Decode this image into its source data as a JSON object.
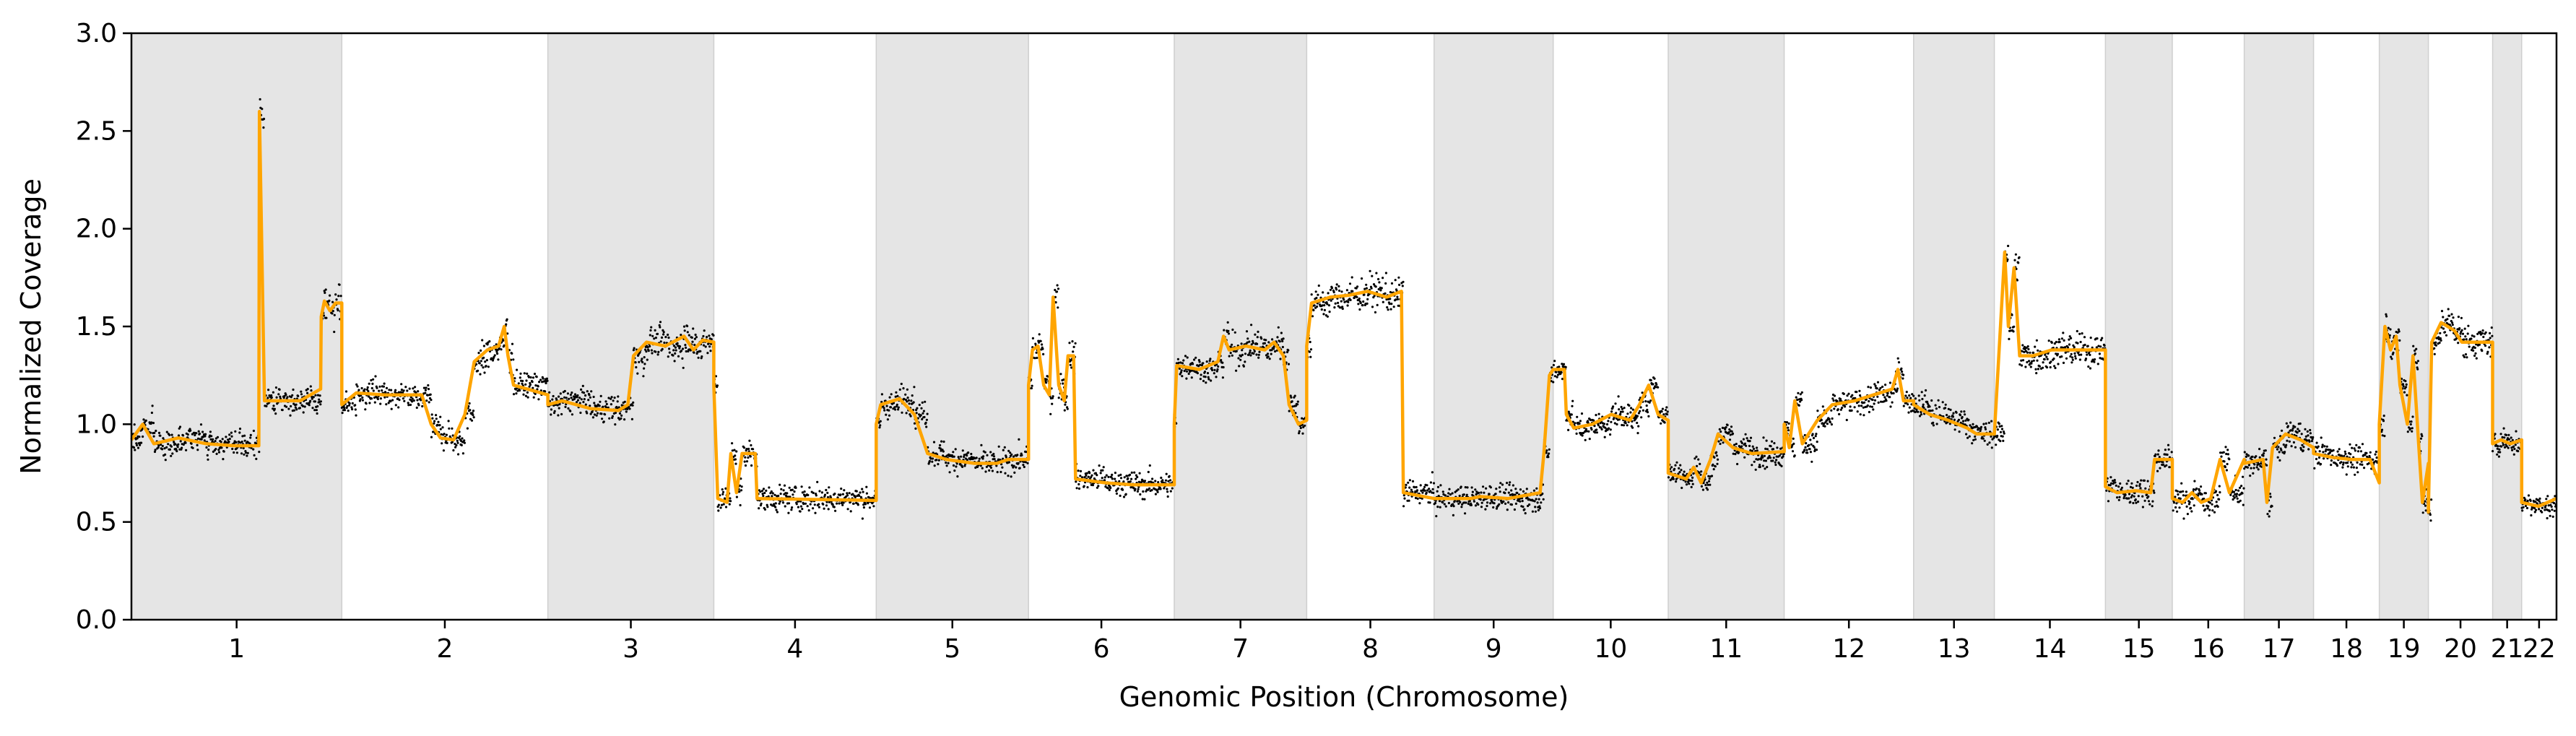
{
  "chart_data": {
    "type": "scatter",
    "xlabel": "Genomic Position (Chromosome)",
    "ylabel": "Normalized Coverage",
    "ylim": [
      0.0,
      3.0
    ],
    "yticks": [
      "0.0",
      "0.5",
      "1.0",
      "1.5",
      "2.0",
      "2.5",
      "3.0"
    ],
    "grid": false,
    "legend": "none",
    "colors": {
      "points": "#000000",
      "segments": "#FFA500",
      "shade": "#e5e5e5",
      "shade_edge": "#cfcfcf"
    },
    "chromosomes": [
      {
        "label": "1",
        "start": 0,
        "end": 1123,
        "shaded": true
      },
      {
        "label": "2",
        "start": 1123,
        "end": 2223,
        "shaded": false
      },
      {
        "label": "3",
        "start": 2223,
        "end": 3109,
        "shaded": true
      },
      {
        "label": "4",
        "start": 3109,
        "end": 3976,
        "shaded": false
      },
      {
        "label": "5",
        "start": 3976,
        "end": 4789,
        "shaded": true
      },
      {
        "label": "6",
        "start": 4789,
        "end": 5567,
        "shaded": false
      },
      {
        "label": "7",
        "start": 5567,
        "end": 6274,
        "shaded": true
      },
      {
        "label": "8",
        "start": 6274,
        "end": 6954,
        "shaded": false
      },
      {
        "label": "9",
        "start": 6954,
        "end": 7590,
        "shaded": true
      },
      {
        "label": "10",
        "start": 7590,
        "end": 8204,
        "shaded": false
      },
      {
        "label": "11",
        "start": 8204,
        "end": 8823,
        "shaded": true
      },
      {
        "label": "12",
        "start": 8823,
        "end": 9514,
        "shaded": false
      },
      {
        "label": "13",
        "start": 9514,
        "end": 9945,
        "shaded": true
      },
      {
        "label": "14",
        "start": 9945,
        "end": 10538,
        "shaded": false
      },
      {
        "label": "15",
        "start": 10538,
        "end": 10895,
        "shaded": true
      },
      {
        "label": "16",
        "start": 10895,
        "end": 11279,
        "shaded": false
      },
      {
        "label": "17",
        "start": 11279,
        "end": 11649,
        "shaded": true
      },
      {
        "label": "18",
        "start": 11649,
        "end": 12000,
        "shaded": false
      },
      {
        "label": "19",
        "start": 12000,
        "end": 12262,
        "shaded": true
      },
      {
        "label": "20",
        "start": 12262,
        "end": 12605,
        "shaded": false
      },
      {
        "label": "21",
        "start": 12605,
        "end": 12760,
        "shaded": true
      },
      {
        "label": "22",
        "start": 12760,
        "end": 12946,
        "shaded": false
      }
    ],
    "segments": [
      [
        0,
        0.92
      ],
      [
        60,
        1.0
      ],
      [
        120,
        0.9
      ],
      [
        250,
        0.93
      ],
      [
        400,
        0.9
      ],
      [
        550,
        0.89
      ],
      [
        680,
        0.89
      ],
      [
        683,
        2.6
      ],
      [
        710,
        1.12
      ],
      [
        900,
        1.12
      ],
      [
        1010,
        1.18
      ],
      [
        1013,
        1.55
      ],
      [
        1030,
        1.63
      ],
      [
        1060,
        1.58
      ],
      [
        1090,
        1.62
      ],
      [
        1123,
        1.62
      ],
      [
        1123,
        1.1
      ],
      [
        1200,
        1.16
      ],
      [
        1350,
        1.15
      ],
      [
        1550,
        1.15
      ],
      [
        1600,
        1.0
      ],
      [
        1650,
        0.93
      ],
      [
        1720,
        0.92
      ],
      [
        1780,
        1.05
      ],
      [
        1830,
        1.32
      ],
      [
        1900,
        1.38
      ],
      [
        1960,
        1.4
      ],
      [
        1990,
        1.5
      ],
      [
        2010,
        1.35
      ],
      [
        2040,
        1.2
      ],
      [
        2223,
        1.15
      ],
      [
        2223,
        1.1
      ],
      [
        2300,
        1.12
      ],
      [
        2450,
        1.08
      ],
      [
        2600,
        1.07
      ],
      [
        2650,
        1.1
      ],
      [
        2680,
        1.35
      ],
      [
        2750,
        1.42
      ],
      [
        2850,
        1.4
      ],
      [
        2950,
        1.45
      ],
      [
        3000,
        1.38
      ],
      [
        3050,
        1.43
      ],
      [
        3109,
        1.42
      ],
      [
        3109,
        1.2
      ],
      [
        3130,
        0.62
      ],
      [
        3180,
        0.6
      ],
      [
        3200,
        0.85
      ],
      [
        3230,
        0.65
      ],
      [
        3260,
        0.85
      ],
      [
        3330,
        0.85
      ],
      [
        3340,
        0.62
      ],
      [
        3976,
        0.61
      ],
      [
        3976,
        1.0
      ],
      [
        4000,
        1.1
      ],
      [
        4100,
        1.13
      ],
      [
        4180,
        1.05
      ],
      [
        4250,
        0.85
      ],
      [
        4350,
        0.82
      ],
      [
        4500,
        0.8
      ],
      [
        4620,
        0.8
      ],
      [
        4680,
        0.82
      ],
      [
        4720,
        0.82
      ],
      [
        4789,
        0.82
      ],
      [
        4789,
        1.2
      ],
      [
        4810,
        1.38
      ],
      [
        4840,
        1.4
      ],
      [
        4870,
        1.2
      ],
      [
        4900,
        1.15
      ],
      [
        4920,
        1.65
      ],
      [
        4950,
        1.2
      ],
      [
        4980,
        1.12
      ],
      [
        5000,
        1.35
      ],
      [
        5030,
        1.35
      ],
      [
        5040,
        0.72
      ],
      [
        5200,
        0.7
      ],
      [
        5350,
        0.69
      ],
      [
        5567,
        0.69
      ],
      [
        5567,
        1.0
      ],
      [
        5580,
        1.3
      ],
      [
        5700,
        1.28
      ],
      [
        5800,
        1.32
      ],
      [
        5830,
        1.45
      ],
      [
        5860,
        1.38
      ],
      [
        5950,
        1.4
      ],
      [
        6050,
        1.38
      ],
      [
        6100,
        1.42
      ],
      [
        6150,
        1.35
      ],
      [
        6180,
        1.1
      ],
      [
        6230,
        1.0
      ],
      [
        6274,
        1.02
      ],
      [
        6274,
        1.4
      ],
      [
        6300,
        1.62
      ],
      [
        6400,
        1.65
      ],
      [
        6500,
        1.66
      ],
      [
        6600,
        1.68
      ],
      [
        6700,
        1.65
      ],
      [
        6780,
        1.68
      ],
      [
        6790,
        0.65
      ],
      [
        6954,
        0.62
      ],
      [
        6954,
        0.62
      ],
      [
        7150,
        0.62
      ],
      [
        7200,
        0.63
      ],
      [
        7350,
        0.62
      ],
      [
        7520,
        0.65
      ],
      [
        7540,
        0.85
      ],
      [
        7570,
        1.25
      ],
      [
        7590,
        1.28
      ],
      [
        7590,
        1.28
      ],
      [
        7650,
        1.28
      ],
      [
        7660,
        1.05
      ],
      [
        7700,
        0.98
      ],
      [
        7800,
        1.0
      ],
      [
        7900,
        1.05
      ],
      [
        8000,
        1.02
      ],
      [
        8050,
        1.1
      ],
      [
        8100,
        1.2
      ],
      [
        8150,
        1.05
      ],
      [
        8204,
        1.02
      ],
      [
        8204,
        0.75
      ],
      [
        8300,
        0.72
      ],
      [
        8340,
        0.78
      ],
      [
        8380,
        0.7
      ],
      [
        8430,
        0.82
      ],
      [
        8470,
        0.95
      ],
      [
        8550,
        0.88
      ],
      [
        8650,
        0.85
      ],
      [
        8823,
        0.86
      ],
      [
        8823,
        1.0
      ],
      [
        8850,
        0.88
      ],
      [
        8880,
        1.12
      ],
      [
        8920,
        0.9
      ],
      [
        9000,
        1.02
      ],
      [
        9080,
        1.1
      ],
      [
        9200,
        1.12
      ],
      [
        9300,
        1.15
      ],
      [
        9400,
        1.18
      ],
      [
        9430,
        1.28
      ],
      [
        9460,
        1.12
      ],
      [
        9514,
        1.12
      ],
      [
        9514,
        1.1
      ],
      [
        9600,
        1.05
      ],
      [
        9700,
        1.02
      ],
      [
        9800,
        0.98
      ],
      [
        9850,
        0.95
      ],
      [
        9945,
        0.95
      ],
      [
        9945,
        0.95
      ],
      [
        10000,
        1.88
      ],
      [
        10020,
        1.5
      ],
      [
        10050,
        1.8
      ],
      [
        10080,
        1.35
      ],
      [
        10150,
        1.35
      ],
      [
        10250,
        1.38
      ],
      [
        10400,
        1.38
      ],
      [
        10538,
        1.38
      ],
      [
        10538,
        0.68
      ],
      [
        10600,
        0.65
      ],
      [
        10700,
        0.66
      ],
      [
        10780,
        0.65
      ],
      [
        10800,
        0.82
      ],
      [
        10895,
        0.82
      ],
      [
        10895,
        0.62
      ],
      [
        10950,
        0.6
      ],
      [
        11000,
        0.65
      ],
      [
        11050,
        0.6
      ],
      [
        11100,
        0.62
      ],
      [
        11150,
        0.82
      ],
      [
        11200,
        0.65
      ],
      [
        11279,
        0.82
      ],
      [
        11279,
        0.8
      ],
      [
        11380,
        0.82
      ],
      [
        11400,
        0.6
      ],
      [
        11430,
        0.88
      ],
      [
        11500,
        0.95
      ],
      [
        11580,
        0.92
      ],
      [
        11649,
        0.88
      ],
      [
        11649,
        0.85
      ],
      [
        11750,
        0.83
      ],
      [
        11850,
        0.82
      ],
      [
        11950,
        0.82
      ],
      [
        12000,
        0.7
      ],
      [
        12000,
        1.0
      ],
      [
        12030,
        1.5
      ],
      [
        12060,
        1.38
      ],
      [
        12090,
        1.45
      ],
      [
        12110,
        1.2
      ],
      [
        12150,
        1.0
      ],
      [
        12180,
        1.35
      ],
      [
        12210,
        0.9
      ],
      [
        12230,
        0.6
      ],
      [
        12262,
        0.8
      ],
      [
        12262,
        0.55
      ],
      [
        12280,
        1.42
      ],
      [
        12330,
        1.52
      ],
      [
        12400,
        1.48
      ],
      [
        12440,
        1.42
      ],
      [
        12520,
        1.42
      ],
      [
        12605,
        1.42
      ],
      [
        12605,
        0.9
      ],
      [
        12650,
        0.92
      ],
      [
        12700,
        0.9
      ],
      [
        12760,
        0.92
      ],
      [
        12760,
        0.6
      ],
      [
        12850,
        0.58
      ],
      [
        12946,
        0.62
      ]
    ]
  }
}
